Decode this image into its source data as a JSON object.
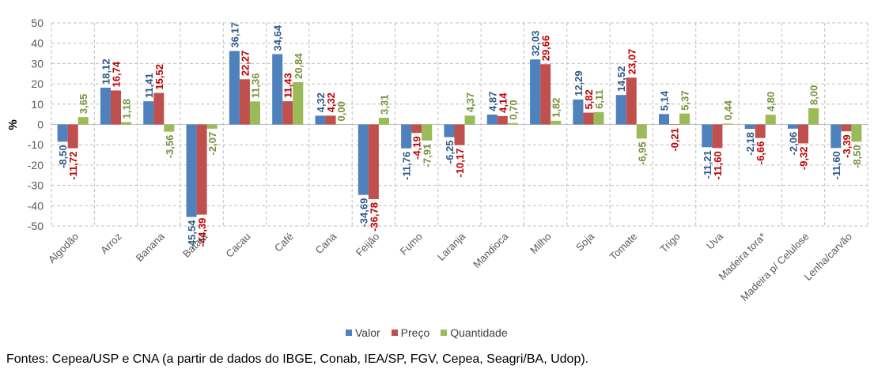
{
  "chart_data": {
    "type": "bar",
    "title": "",
    "xlabel": "",
    "ylabel": "%",
    "ylim": [
      -50,
      50
    ],
    "yticks": [
      50,
      40,
      30,
      20,
      10,
      0,
      -10,
      -20,
      -30,
      -40,
      -50
    ],
    "grid": true,
    "legend_position": "bottom",
    "categories": [
      "Algodão",
      "Arroz",
      "Banana",
      "Batata",
      "Cacau",
      "Café",
      "Cana",
      "Feijão",
      "Fumo",
      "Laranja",
      "Mandioca",
      "Milho",
      "Soja",
      "Tomate",
      "Trigo",
      "Uva",
      "Madeira tora*",
      "Madeira p/ Celulose",
      "Lenha/carvão"
    ],
    "series": [
      {
        "name": "Valor",
        "color": "#4F81BD",
        "label_color": "#2E5A8C",
        "values": [
          -8.5,
          18.12,
          11.41,
          -45.54,
          36.17,
          34.64,
          4.32,
          -34.69,
          -11.76,
          -6.25,
          4.87,
          32.03,
          12.29,
          14.52,
          5.14,
          -11.21,
          -2.18,
          -2.06,
          -11.6
        ],
        "labels": [
          "-8,50",
          "18,12",
          "11,41",
          "-45,54",
          "36,17",
          "34,64",
          "4,32",
          "-34,69",
          "-11,76",
          "-6,25",
          "4,87",
          "32,03",
          "12,29",
          "14,52",
          "5,14",
          "-11,21",
          "-2,18",
          "-2,06",
          "-11,60"
        ]
      },
      {
        "name": "Preço",
        "color": "#C0504D",
        "label_color": "#C00000",
        "values": [
          -11.72,
          16.74,
          15.52,
          -44.39,
          22.27,
          11.43,
          4.32,
          -36.78,
          -4.19,
          -10.17,
          4.14,
          29.66,
          5.82,
          23.07,
          -0.21,
          -11.6,
          -6.66,
          -9.32,
          -3.39
        ],
        "labels": [
          "-11,72",
          "16,74",
          "15,52",
          "-44,39",
          "22,27",
          "11,43",
          "4,32",
          "-36,78",
          "-4,19",
          "-10,17",
          "4,14",
          "29,66",
          "5,82",
          "23,07",
          "-0,21",
          "-11,60",
          "-6,66",
          "-9,32",
          "-3,39"
        ]
      },
      {
        "name": "Quantidade",
        "color": "#9BBB59",
        "label_color": "#77933C",
        "values": [
          3.65,
          1.18,
          -3.56,
          -2.07,
          11.36,
          20.84,
          0.0,
          3.31,
          -7.91,
          4.37,
          0.7,
          1.82,
          6.11,
          -6.95,
          5.37,
          0.44,
          4.8,
          8.0,
          -8.5
        ],
        "labels": [
          "3,65",
          "1,18",
          "-3,56",
          "-2,07",
          "11,36",
          "20,84",
          "0,00",
          "3,31",
          "-7,91",
          "4,37",
          "0,70",
          "1,82",
          "6,11",
          "-6,95",
          "5,37",
          "0,44",
          "4,80",
          "8,00",
          "-8,50"
        ]
      }
    ]
  },
  "legend": {
    "items": [
      {
        "label": "Valor",
        "color": "#4F81BD"
      },
      {
        "label": "Preço",
        "color": "#C0504D"
      },
      {
        "label": "Quantidade",
        "color": "#9BBB59"
      }
    ]
  },
  "source_note": "Fontes: Cepea/USP e CNA (a partir de dados do IBGE, Conab, IEA/SP, FGV, Cepea, Seagri/BA, Udop)."
}
